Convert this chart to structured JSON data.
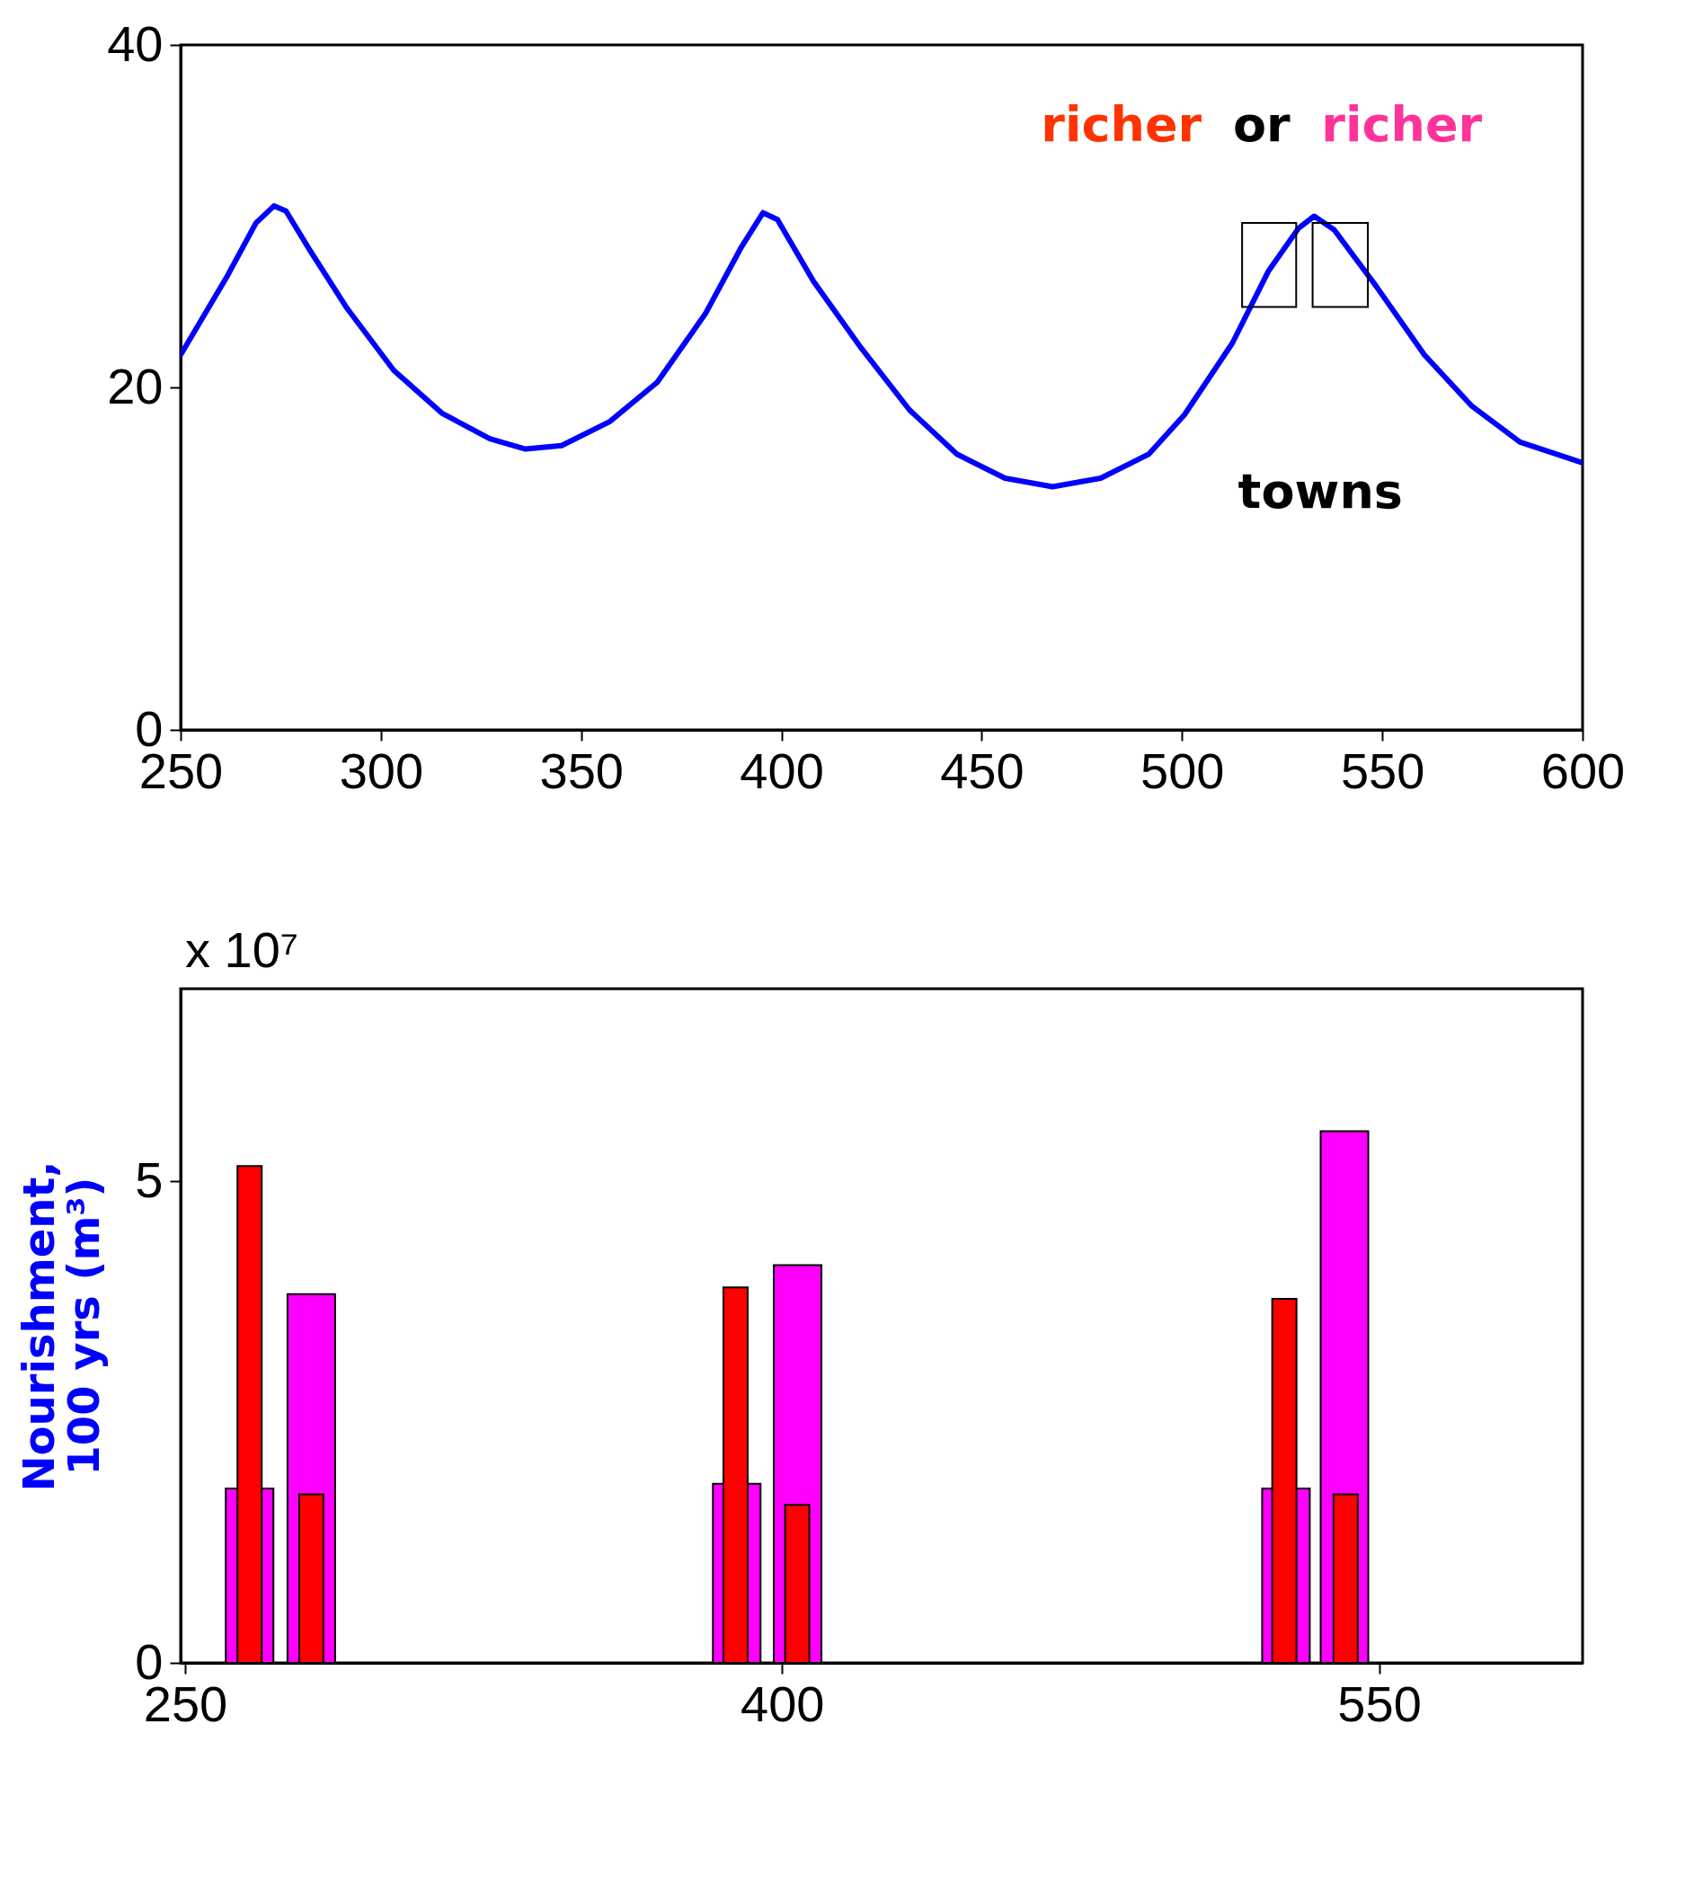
{
  "chart_data": [
    {
      "type": "line",
      "x": [
        250,
        261.4,
        268.8,
        273.3,
        276.3,
        282.3,
        291.3,
        303.2,
        315.2,
        327.2,
        336.1,
        345.1,
        357.1,
        369.0,
        381.0,
        390.0,
        395.4,
        399.0,
        408.0,
        419.9,
        431.9,
        443.8,
        455.8,
        467.7,
        479.7,
        491.7,
        500.6,
        512.6,
        521.6,
        529.1,
        533.0,
        538.0,
        548.5,
        560.5,
        572.4,
        584.4,
        600
      ],
      "series": [
        {
          "color": "#0000ff",
          "values": [
            21.9,
            26.4,
            29.6,
            30.6,
            30.3,
            28.0,
            24.7,
            21.0,
            18.5,
            17.0,
            16.4,
            16.6,
            18.0,
            20.3,
            24.3,
            28.2,
            30.2,
            29.8,
            26.2,
            22.3,
            18.7,
            16.1,
            14.7,
            14.2,
            14.7,
            16.1,
            18.4,
            22.6,
            26.8,
            29.3,
            30.0,
            29.2,
            25.9,
            21.9,
            18.9,
            16.8,
            15.6
          ]
        }
      ],
      "xlim": [
        250,
        600
      ],
      "xticks": [
        250,
        300,
        350,
        400,
        450,
        500,
        550,
        600
      ],
      "ylim": [
        0,
        40
      ],
      "yticks": [
        0,
        20,
        40
      ],
      "annotations": [
        "richer",
        "or",
        "richer",
        "towns"
      ]
    },
    {
      "type": "bar",
      "ylabel": "Nourishment,\n100 yrs (m³)",
      "series": [
        {
          "color": "#ff00ff",
          "x": [
            266.2,
            281.7,
            388.6,
            403.9,
            526.6,
            541.3
          ],
          "values": [
            1.81,
            3.83,
            1.86,
            4.13,
            1.81,
            5.52
          ]
        },
        {
          "color": "#ff0000",
          "x": [
            266.2,
            281.7,
            388.3,
            403.8,
            526.2,
            541.6
          ],
          "values": [
            5.16,
            1.75,
            3.9,
            1.64,
            3.78,
            1.75
          ]
        }
      ],
      "xlim": [
        250,
        600
      ],
      "xticks": [
        250,
        400,
        550
      ],
      "ylim": [
        0,
        7
      ],
      "yticks": [
        0,
        5
      ],
      "annotations": [
        "x 10⁷"
      ]
    }
  ]
}
